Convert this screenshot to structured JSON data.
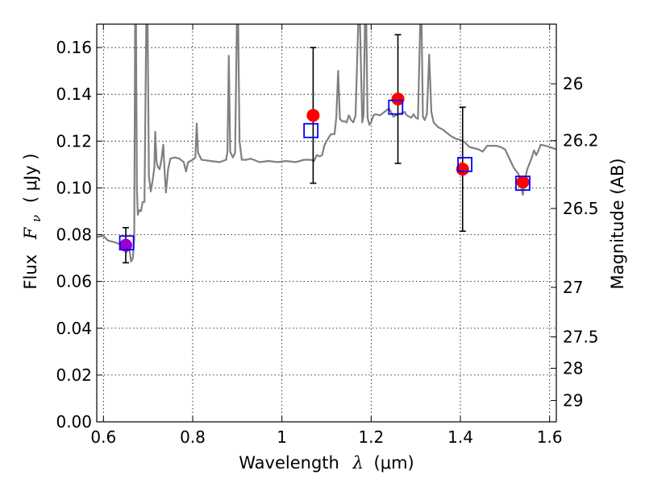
{
  "chart_data": {
    "type": "scatter",
    "xlabel": "Wavelength",
    "xlabel_symbol": "λ",
    "xlabel_unit": "(μm)",
    "ylabel": "Flux",
    "ylabel_symbol": "F",
    "ylabel_subscript": "ν",
    "ylabel_unit": "( μJy )",
    "y2label": "Magnitude (AB)",
    "xlim": [
      0.585,
      1.615
    ],
    "ylim": [
      0.0,
      0.17
    ],
    "grid": true,
    "x_ticks": [
      0.6,
      0.8,
      1.0,
      1.2,
      1.4,
      1.6
    ],
    "x_tick_labels": [
      "0.6",
      "0.8",
      "1",
      "1.2",
      "1.4",
      "1.6"
    ],
    "y_ticks": [
      0.0,
      0.02,
      0.04,
      0.06,
      0.08,
      0.1,
      0.12,
      0.14,
      0.16
    ],
    "y_tick_labels": [
      "0.00",
      "0.02",
      "0.04",
      "0.06",
      "0.08",
      "0.10",
      "0.12",
      "0.14",
      "0.16"
    ],
    "y2_ticks": [
      {
        "label": "26",
        "flux": 0.1445
      },
      {
        "label": "26.2",
        "flux": 0.1202
      },
      {
        "label": "26.5",
        "flux": 0.0912
      },
      {
        "label": "27",
        "flux": 0.0575
      },
      {
        "label": "27.5",
        "flux": 0.0363
      },
      {
        "label": "28",
        "flux": 0.0229
      },
      {
        "label": "29",
        "flux": 0.0091
      }
    ],
    "series": [
      {
        "kind": "spectrum",
        "color": "#808080",
        "points": [
          [
            0.585,
            0.079
          ],
          [
            0.6,
            0.0795
          ],
          [
            0.61,
            0.0775
          ],
          [
            0.62,
            0.077
          ],
          [
            0.63,
            0.0765
          ],
          [
            0.64,
            0.0755
          ],
          [
            0.648,
            0.0755
          ],
          [
            0.652,
            0.0725
          ],
          [
            0.655,
            0.0775
          ],
          [
            0.658,
            0.074
          ],
          [
            0.662,
            0.0685
          ],
          [
            0.666,
            0.07
          ],
          [
            0.669,
            0.078
          ],
          [
            0.671,
            0.17
          ],
          [
            0.673,
            0.17
          ],
          [
            0.675,
            0.1
          ],
          [
            0.677,
            0.0885
          ],
          [
            0.68,
            0.0905
          ],
          [
            0.684,
            0.09
          ],
          [
            0.688,
            0.094
          ],
          [
            0.692,
            0.094
          ],
          [
            0.696,
            0.17
          ],
          [
            0.699,
            0.17
          ],
          [
            0.702,
            0.105
          ],
          [
            0.706,
            0.0985
          ],
          [
            0.71,
            0.103
          ],
          [
            0.714,
            0.1085
          ],
          [
            0.716,
            0.124
          ],
          [
            0.719,
            0.111
          ],
          [
            0.722,
            0.109
          ],
          [
            0.726,
            0.108
          ],
          [
            0.73,
            0.112
          ],
          [
            0.734,
            0.1185
          ],
          [
            0.737,
            0.1075
          ],
          [
            0.74,
            0.098
          ],
          [
            0.745,
            0.108
          ],
          [
            0.75,
            0.1125
          ],
          [
            0.76,
            0.113
          ],
          [
            0.77,
            0.1125
          ],
          [
            0.78,
            0.111
          ],
          [
            0.785,
            0.107
          ],
          [
            0.79,
            0.111
          ],
          [
            0.8,
            0.112
          ],
          [
            0.806,
            0.113
          ],
          [
            0.809,
            0.1275
          ],
          [
            0.812,
            0.115
          ],
          [
            0.82,
            0.112
          ],
          [
            0.84,
            0.1115
          ],
          [
            0.86,
            0.111
          ],
          [
            0.875,
            0.112
          ],
          [
            0.878,
            0.1155
          ],
          [
            0.881,
            0.1565
          ],
          [
            0.884,
            0.1155
          ],
          [
            0.89,
            0.113
          ],
          [
            0.895,
            0.115
          ],
          [
            0.899,
            0.17
          ],
          [
            0.902,
            0.17
          ],
          [
            0.905,
            0.12
          ],
          [
            0.91,
            0.112
          ],
          [
            0.92,
            0.112
          ],
          [
            0.93,
            0.1125
          ],
          [
            0.95,
            0.111
          ],
          [
            0.97,
            0.1115
          ],
          [
            0.99,
            0.111
          ],
          [
            1.01,
            0.1115
          ],
          [
            1.03,
            0.111
          ],
          [
            1.05,
            0.112
          ],
          [
            1.065,
            0.112
          ],
          [
            1.072,
            0.1115
          ],
          [
            1.078,
            0.114
          ],
          [
            1.085,
            0.1135
          ],
          [
            1.09,
            0.114
          ],
          [
            1.095,
            0.118
          ],
          [
            1.1,
            0.12
          ],
          [
            1.11,
            0.123
          ],
          [
            1.118,
            0.123
          ],
          [
            1.122,
            0.1305
          ],
          [
            1.126,
            0.15
          ],
          [
            1.13,
            0.1295
          ],
          [
            1.135,
            0.1285
          ],
          [
            1.14,
            0.1285
          ],
          [
            1.145,
            0.128
          ],
          [
            1.15,
            0.131
          ],
          [
            1.155,
            0.129
          ],
          [
            1.16,
            0.128
          ],
          [
            1.165,
            0.131
          ],
          [
            1.171,
            0.17
          ],
          [
            1.175,
            0.17
          ],
          [
            1.18,
            0.128
          ],
          [
            1.183,
            0.131
          ],
          [
            1.186,
            0.17
          ],
          [
            1.189,
            0.17
          ],
          [
            1.192,
            0.13
          ],
          [
            1.196,
            0.127
          ],
          [
            1.2,
            0.128
          ],
          [
            1.205,
            0.131
          ],
          [
            1.21,
            0.1315
          ],
          [
            1.22,
            0.131
          ],
          [
            1.23,
            0.1325
          ],
          [
            1.24,
            0.134
          ],
          [
            1.25,
            0.1305
          ],
          [
            1.26,
            0.1315
          ],
          [
            1.27,
            0.132
          ],
          [
            1.275,
            0.1325
          ],
          [
            1.28,
            0.131
          ],
          [
            1.285,
            0.1305
          ],
          [
            1.29,
            0.13
          ],
          [
            1.295,
            0.1315
          ],
          [
            1.3,
            0.13
          ],
          [
            1.305,
            0.1295
          ],
          [
            1.31,
            0.17
          ],
          [
            1.313,
            0.17
          ],
          [
            1.316,
            0.1305
          ],
          [
            1.32,
            0.129
          ],
          [
            1.325,
            0.1315
          ],
          [
            1.33,
            0.157
          ],
          [
            1.335,
            0.1325
          ],
          [
            1.34,
            0.128
          ],
          [
            1.35,
            0.126
          ],
          [
            1.36,
            0.125
          ],
          [
            1.37,
            0.1235
          ],
          [
            1.38,
            0.122
          ],
          [
            1.39,
            0.121
          ],
          [
            1.4,
            0.1205
          ],
          [
            1.41,
            0.1195
          ],
          [
            1.42,
            0.1175
          ],
          [
            1.43,
            0.117
          ],
          [
            1.44,
            0.1165
          ],
          [
            1.45,
            0.1155
          ],
          [
            1.46,
            0.118
          ],
          [
            1.47,
            0.118
          ],
          [
            1.48,
            0.118
          ],
          [
            1.49,
            0.1175
          ],
          [
            1.5,
            0.1165
          ],
          [
            1.51,
            0.1125
          ],
          [
            1.52,
            0.1085
          ],
          [
            1.53,
            0.106
          ],
          [
            1.535,
            0.102
          ],
          [
            1.54,
            0.097
          ],
          [
            1.545,
            0.104
          ],
          [
            1.55,
            0.108
          ],
          [
            1.56,
            0.113
          ],
          [
            1.565,
            0.116
          ],
          [
            1.57,
            0.114
          ],
          [
            1.575,
            0.116
          ],
          [
            1.58,
            0.1185
          ],
          [
            1.59,
            0.118
          ],
          [
            1.6,
            0.1175
          ],
          [
            1.615,
            0.1165
          ]
        ]
      },
      {
        "kind": "observed",
        "marker": "circle",
        "color": "#ff0000",
        "points": [
          {
            "x": 0.65,
            "y": 0.0755,
            "err": 0.0075,
            "color": "#9900cc"
          },
          {
            "x": 1.07,
            "y": 0.131,
            "err": 0.029
          },
          {
            "x": 1.26,
            "y": 0.138,
            "err": 0.0275
          },
          {
            "x": 1.405,
            "y": 0.108,
            "err": 0.0265
          },
          {
            "x": 1.54,
            "y": 0.1025,
            "err": null
          }
        ]
      },
      {
        "kind": "model-photometry",
        "marker": "open-square",
        "color": "#0000ff",
        "points": [
          {
            "x": 0.652,
            "y": 0.0765
          },
          {
            "x": 1.065,
            "y": 0.1245
          },
          {
            "x": 1.255,
            "y": 0.1345
          },
          {
            "x": 1.41,
            "y": 0.11
          },
          {
            "x": 1.54,
            "y": 0.102
          }
        ]
      }
    ]
  }
}
